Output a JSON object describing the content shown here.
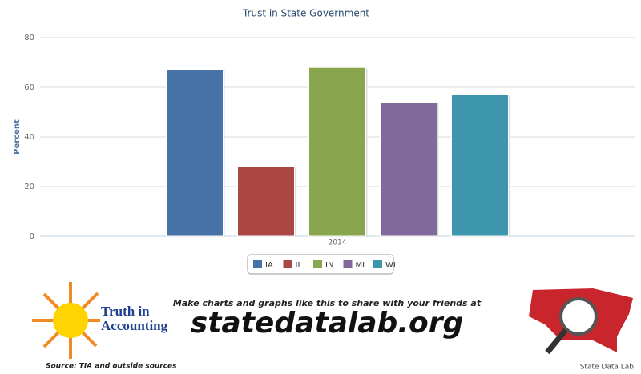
{
  "chart_data": {
    "type": "bar",
    "title": "Trust in State Government",
    "y_label": "Percent",
    "categories": [
      "2014"
    ],
    "series": [
      {
        "name": "IA",
        "color": "#4572A7",
        "values": [
          67
        ]
      },
      {
        "name": "IL",
        "color": "#AA4643",
        "values": [
          28
        ]
      },
      {
        "name": "IN",
        "color": "#89A54E",
        "values": [
          68
        ]
      },
      {
        "name": "MI",
        "color": "#80699B",
        "values": [
          54
        ]
      },
      {
        "name": "WI",
        "color": "#3D96AE",
        "values": [
          57
        ]
      }
    ],
    "ylim": [
      0,
      80
    ],
    "yticks": [
      0,
      20,
      40,
      60,
      80
    ],
    "grid": true,
    "legend": "bottom"
  },
  "footer": {
    "logo_line1": "Truth in",
    "logo_line2": "Accounting",
    "source": "Source: TIA and outside sources",
    "promo": "Make charts and graphs like this to share with your friends at",
    "site": "statedatalab.org",
    "credit": "State Data Lab"
  }
}
